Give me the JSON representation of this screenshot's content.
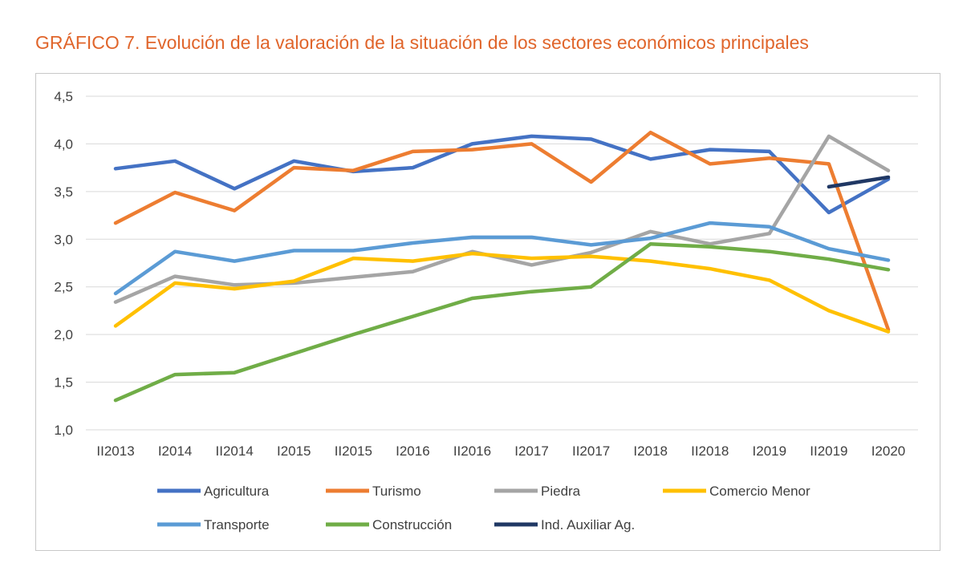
{
  "chart_data": {
    "type": "line",
    "title": "GRÁFICO 7. Evolución de la valoración de la situación de los sectores económicos principales",
    "categories": [
      "II2013",
      "I2014",
      "II2014",
      "I2015",
      "II2015",
      "I2016",
      "II2016",
      "I2017",
      "II2017",
      "I2018",
      "II2018",
      "I2019",
      "II2019",
      "I2020"
    ],
    "y_ticks": [
      "1,0",
      "1,5",
      "2,0",
      "2,5",
      "3,0",
      "3,5",
      "4,0",
      "4,5"
    ],
    "ylim": [
      1.0,
      4.5
    ],
    "grid": "horizontal",
    "legend_position": "bottom",
    "series": [
      {
        "name": "Agricultura",
        "color": "#4472c4",
        "values": [
          3.74,
          3.82,
          3.53,
          3.82,
          3.71,
          3.75,
          4.0,
          4.08,
          4.05,
          3.84,
          3.94,
          3.92,
          3.28,
          3.63
        ]
      },
      {
        "name": "Turismo",
        "color": "#ed7d31",
        "values": [
          3.17,
          3.49,
          3.3,
          3.75,
          3.72,
          3.92,
          3.94,
          4.0,
          3.6,
          4.12,
          3.79,
          3.85,
          3.79,
          2.05
        ]
      },
      {
        "name": "Piedra",
        "color": "#a5a5a5",
        "values": [
          2.34,
          2.61,
          2.52,
          2.54,
          2.6,
          2.66,
          2.87,
          2.73,
          2.86,
          3.08,
          2.95,
          3.06,
          4.08,
          3.72
        ]
      },
      {
        "name": "Comercio Menor",
        "color": "#ffc000",
        "values": [
          2.09,
          2.54,
          2.48,
          2.56,
          2.8,
          2.77,
          2.85,
          2.8,
          2.82,
          2.77,
          2.69,
          2.57,
          2.25,
          2.03
        ]
      },
      {
        "name": "Transporte",
        "color": "#5b9bd5",
        "values": [
          2.43,
          2.87,
          2.77,
          2.88,
          2.88,
          2.96,
          3.02,
          3.02,
          2.94,
          3.01,
          3.17,
          3.13,
          2.9,
          2.78
        ]
      },
      {
        "name": "Construcción",
        "color": "#70ad47",
        "values": [
          1.31,
          1.58,
          1.6,
          1.8,
          2.0,
          2.19,
          2.38,
          2.45,
          2.5,
          2.95,
          2.92,
          2.87,
          2.79,
          2.68
        ]
      },
      {
        "name": "Ind. Auxiliar Ag.",
        "color": "#203864",
        "values": [
          null,
          null,
          null,
          null,
          null,
          null,
          null,
          null,
          null,
          null,
          null,
          null,
          3.55,
          3.65
        ]
      }
    ]
  }
}
